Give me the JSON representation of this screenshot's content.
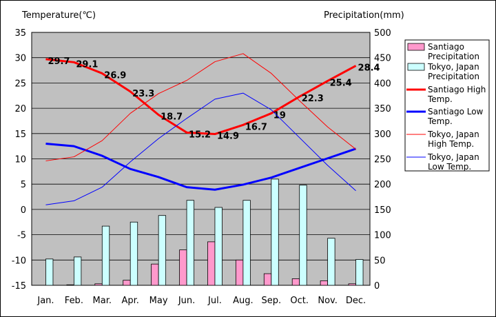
{
  "chart_data": {
    "type": "bar+line",
    "left_axis_title": "Temperature(℃)",
    "right_axis_title": "Precipitation(mm)",
    "left_ylim": [
      -15,
      35
    ],
    "left_ticks": [
      -15,
      -10,
      -5,
      0,
      5,
      10,
      15,
      20,
      25,
      30,
      35
    ],
    "right_ylim": [
      0,
      500
    ],
    "right_ticks": [
      0,
      50,
      100,
      150,
      200,
      250,
      300,
      350,
      400,
      450,
      500
    ],
    "categories": [
      "Jan.",
      "Feb.",
      "Mar.",
      "Apr.",
      "May",
      "Jun.",
      "Jul.",
      "Aug.",
      "Sep.",
      "Oct.",
      "Nov.",
      "Dec."
    ],
    "bars": [
      {
        "name": "Santiago Precipitation",
        "color": "#ff99cc",
        "values": [
          0,
          1,
          3,
          10,
          42,
          70,
          86,
          50,
          23,
          13,
          9,
          3
        ]
      },
      {
        "name": "Tokyo, Japan Precipitation",
        "color": "#ccffff",
        "values": [
          52,
          56,
          117,
          125,
          138,
          168,
          154,
          168,
          210,
          198,
          93,
          51
        ]
      }
    ],
    "lines": [
      {
        "name": "Santiago High Temp.",
        "color": "#ff0000",
        "width": 3,
        "values": [
          29.7,
          29.1,
          26.9,
          23.3,
          18.7,
          15.2,
          14.9,
          16.7,
          19,
          22.3,
          25.4,
          28.4
        ],
        "labels": [
          "29.7",
          "29.1",
          "26.9",
          "23.3",
          "18.7",
          "15.2",
          "14.9",
          "16.7",
          "19",
          "22.3",
          "25.4",
          "28.4"
        ]
      },
      {
        "name": "Santiago Low Temp.",
        "color": "#0000ff",
        "width": 3,
        "values": [
          13,
          12.5,
          10.6,
          8,
          6.4,
          4.4,
          3.9,
          4.9,
          6.3,
          8.2,
          10.1,
          12
        ]
      },
      {
        "name": "Tokyo, Japan High Temp.",
        "color": "#ff0000",
        "width": 1,
        "values": [
          9.6,
          10.4,
          13.6,
          19,
          22.9,
          25.5,
          29.2,
          30.8,
          26.9,
          21.5,
          16.3,
          11.9
        ]
      },
      {
        "name": "Tokyo, Japan Low Temp.",
        "color": "#0000ff",
        "width": 1,
        "values": [
          0.9,
          1.7,
          4.4,
          9.4,
          14,
          18,
          21.8,
          23,
          19.7,
          14.2,
          8.7,
          3.7
        ]
      }
    ],
    "legend": [
      "Santiago Precipitation",
      "Tokyo, Japan Precipitation",
      "Santiago High Temp.",
      "Santiago Low Temp.",
      "Tokyo, Japan High Temp.",
      "Tokyo, Japan Low Temp."
    ],
    "legend_position": "right",
    "plot_background": "#c0c0c0",
    "grid": true
  }
}
